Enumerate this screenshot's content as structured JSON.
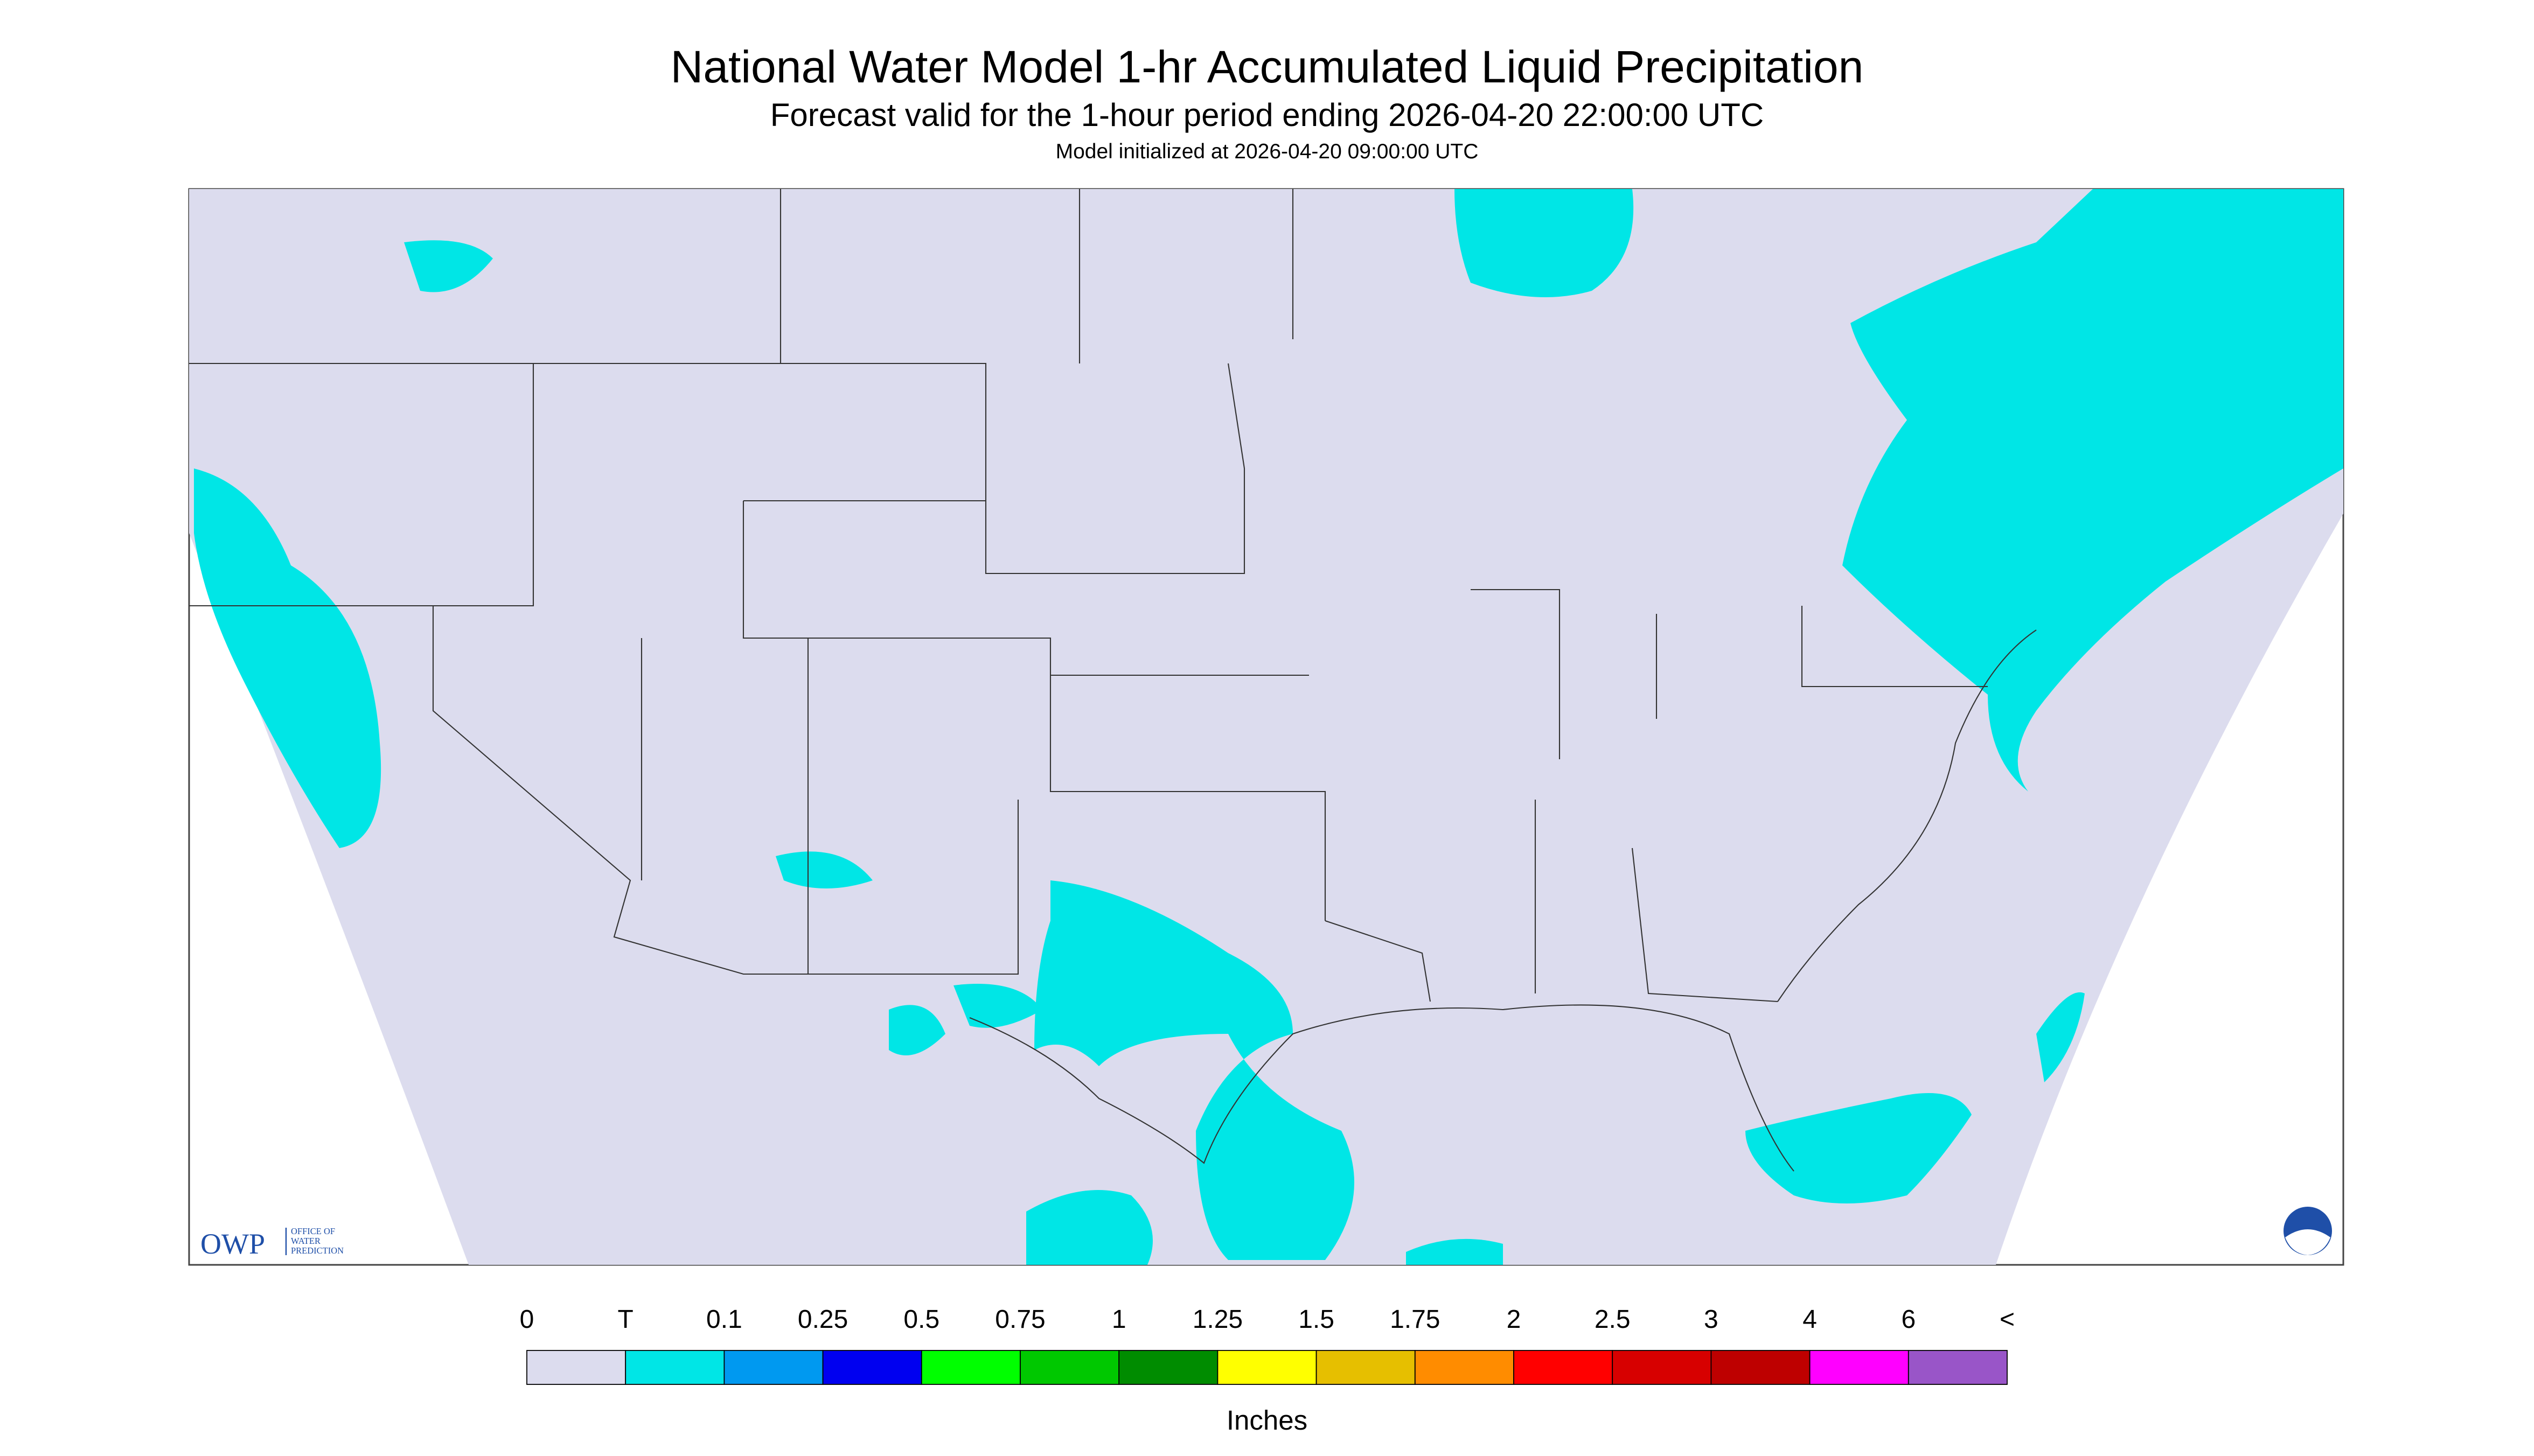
{
  "header": {
    "title": "National Water Model 1-hr Accumulated Liquid Precipitation",
    "subtitle": "Forecast valid for the 1-hour period ending 2026-04-20 22:00:00 UTC",
    "init": "Model initialized at 2026-04-20 09:00:00 UTC"
  },
  "logo": {
    "abbr": "OWP",
    "line1": "OFFICE OF",
    "line2": "WATER",
    "line3": "PREDICTION"
  },
  "legend": {
    "labels": [
      "0",
      "T",
      "0.1",
      "0.25",
      "0.5",
      "0.75",
      "1",
      "1.25",
      "1.5",
      "1.75",
      "2",
      "2.5",
      "3",
      "4",
      "6",
      "<"
    ],
    "colors": [
      "#dcdcee",
      "#00e6e6",
      "#0099f0",
      "#0000f0",
      "#00ff00",
      "#00c800",
      "#008c00",
      "#ffff00",
      "#e6bf00",
      "#ff8c00",
      "#ff0000",
      "#d70000",
      "#be0000",
      "#ff00ff",
      "#9955c8"
    ],
    "unit": "Inches"
  }
}
